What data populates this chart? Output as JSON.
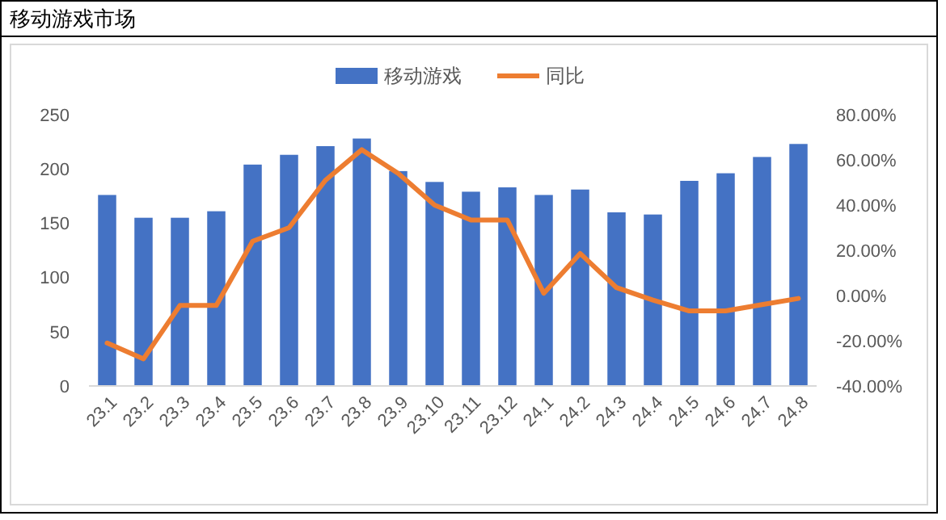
{
  "chart_data": {
    "type": "bar",
    "title": "移动游戏市场",
    "categories": [
      "23.1",
      "23.2",
      "23.3",
      "23.4",
      "23.5",
      "23.6",
      "23.7",
      "23.8",
      "23.9",
      "23.10",
      "23.11",
      "23.12",
      "24.1",
      "24.2",
      "24.3",
      "24.4",
      "24.5",
      "24.6",
      "24.7",
      "24.8"
    ],
    "series": [
      {
        "name": "移动游戏",
        "color": "#4472c4",
        "values": [
          176,
          155,
          155,
          161,
          204,
          213,
          221,
          228,
          198,
          188,
          179,
          183,
          176,
          181,
          160,
          158,
          189,
          196,
          211,
          223
        ]
      },
      {
        "name": "同比",
        "type": "line",
        "axis": "y2",
        "color": "#ed7d31",
        "values": [
          -21,
          -28,
          -4.4,
          -4.4,
          24,
          30,
          51,
          64.5,
          54,
          40,
          33.4,
          33.4,
          1,
          18.6,
          3.5,
          -2,
          -6.8,
          -6.8,
          -4,
          -1.3
        ]
      }
    ],
    "ylim": [
      0,
      250
    ],
    "yticks": [
      0,
      50,
      100,
      150,
      200,
      250
    ],
    "y2lim": [
      -40,
      80
    ],
    "y2ticks": [
      {
        "value": -40,
        "label": "-40.00%"
      },
      {
        "value": -20,
        "label": "-20.00%"
      },
      {
        "value": 0,
        "label": "0.00%"
      },
      {
        "value": 20,
        "label": "20.00%"
      },
      {
        "value": 40,
        "label": "40.00%"
      },
      {
        "value": 60,
        "label": "60.00%"
      },
      {
        "value": 80,
        "label": "80.00%"
      }
    ],
    "legend": "top",
    "grid": false
  }
}
